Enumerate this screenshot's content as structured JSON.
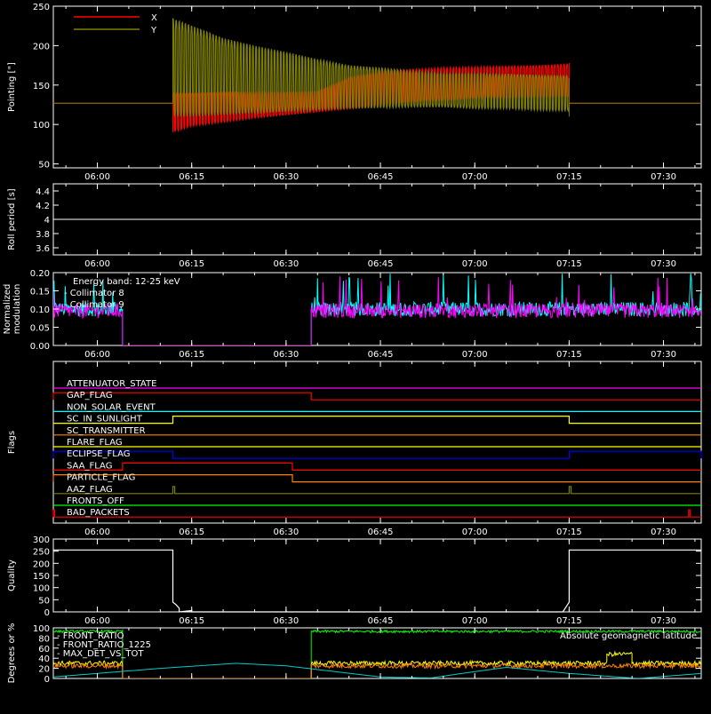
{
  "chart_data": [
    {
      "panel": "pointing",
      "type": "line",
      "ylabel": "Pointing [\"]",
      "ylim": [
        45,
        250
      ],
      "yticks": [
        50,
        100,
        150,
        200,
        250
      ],
      "x_ticklabels": [
        "06:00",
        "06:15",
        "06:30",
        "06:45",
        "07:00",
        "07:15",
        "07:30"
      ],
      "xlim": [
        "05:53",
        "07:36"
      ],
      "legend_position": "top-left",
      "series": [
        {
          "name": "X",
          "color": "#ff0000",
          "baseline": 127,
          "active_range": [
            "06:12",
            "07:15"
          ],
          "envelope_times": [
            "06:12",
            "06:15",
            "06:20",
            "06:25",
            "06:30",
            "06:35",
            "06:40",
            "06:45",
            "06:50",
            "06:55",
            "07:00",
            "07:05",
            "07:10",
            "07:15"
          ],
          "envelope_min": [
            90,
            98,
            103,
            108,
            112,
            116,
            120,
            124,
            128,
            130,
            133,
            133,
            134,
            135
          ],
          "envelope_max": [
            140,
            140,
            141,
            141,
            141,
            142,
            160,
            168,
            170,
            172,
            173,
            174,
            175,
            177
          ]
        },
        {
          "name": "Y",
          "color": "#808000",
          "baseline": 127,
          "active_range": [
            "06:12",
            "07:15"
          ],
          "envelope_times": [
            "06:12",
            "06:15",
            "06:20",
            "06:25",
            "06:30",
            "06:35",
            "06:40",
            "06:45",
            "06:50",
            "06:55",
            "07:00",
            "07:05",
            "07:10",
            "07:15"
          ],
          "envelope_min": [
            110,
            110,
            112,
            114,
            116,
            118,
            120,
            121,
            122,
            122,
            120,
            120,
            118,
            117
          ],
          "envelope_max": [
            235,
            226,
            210,
            200,
            192,
            183,
            175,
            172,
            168,
            165,
            165,
            164,
            163,
            162
          ]
        }
      ]
    },
    {
      "panel": "roll-period",
      "type": "line",
      "ylabel": "Roll period [s]",
      "ylim": [
        3.5,
        4.5
      ],
      "yticks": [
        3.6,
        3.8,
        4.0,
        4.2,
        4.4
      ],
      "x_ticklabels": [
        "06:00",
        "06:15",
        "06:30",
        "06:45",
        "07:00",
        "07:15",
        "07:30"
      ],
      "series": [
        {
          "color": "#ffffff",
          "x": [
            "05:53",
            "07:36"
          ],
          "y": [
            4.0,
            4.0
          ]
        }
      ]
    },
    {
      "panel": "modulation",
      "type": "line",
      "ylabel": [
        "Normalized",
        "modulation"
      ],
      "ylim": [
        0.0,
        0.2
      ],
      "yticks": [
        "0.00",
        "0.05",
        "0.10",
        "0.15",
        "0.20"
      ],
      "x_ticklabels": [
        "06:00",
        "06:15",
        "06:30",
        "06:45",
        "07:00",
        "07:15",
        "07:30"
      ],
      "annotation": "Energy band: 12-25 keV",
      "series": [
        {
          "name": "Collimator 8",
          "color": "#00ffff",
          "level": 0.1,
          "active": [
            [
              "05:53",
              "06:04"
            ],
            [
              "06:34",
              "07:36"
            ]
          ],
          "zero_range": [
            "06:04",
            "06:34"
          ]
        },
        {
          "name": "Collimator 9",
          "color": "#ff00ff",
          "level": 0.095,
          "active": [
            [
              "05:53",
              "06:04"
            ],
            [
              "06:34",
              "07:36"
            ]
          ],
          "zero_range": [
            "06:04",
            "06:34"
          ]
        }
      ]
    },
    {
      "panel": "flags",
      "type": "line",
      "ylabel": "Flags",
      "x_ticklabels": [
        "06:00",
        "06:15",
        "06:30",
        "06:45",
        "07:00",
        "07:15",
        "07:30"
      ],
      "flags": [
        {
          "label": "ATTENUATOR_STATE",
          "color": "#ff00ff",
          "high": []
        },
        {
          "label": "GAP_FLAG",
          "color": "#ff0000",
          "high": [
            [
              "05:53",
              "06:34"
            ]
          ]
        },
        {
          "label": "NON_SOLAR_EVENT",
          "color": "#00ffff",
          "high": []
        },
        {
          "label": "SC_IN_SUNLIGHT",
          "color": "#ffff00",
          "high": [
            [
              "06:12",
              "07:15"
            ]
          ]
        },
        {
          "label": "SC_TRANSMITTER",
          "color": "#ff8000",
          "high": []
        },
        {
          "label": "FLARE_FLAG",
          "color": "#ffff00",
          "high": []
        },
        {
          "label": "ECLIPSE_FLAG",
          "color": "#0000ff",
          "high": [
            [
              "05:53",
              "06:12"
            ],
            [
              "07:15",
              "07:36"
            ]
          ]
        },
        {
          "label": "SAA_FLAG",
          "color": "#ff0000",
          "high": [
            [
              "06:04",
              "06:31"
            ]
          ]
        },
        {
          "label": "PARTICLE_FLAG",
          "color": "#ff8000",
          "high": [
            [
              "05:53",
              "06:31"
            ]
          ]
        },
        {
          "label": "AAZ_FLAG",
          "color": "#808000",
          "high": [
            [
              "06:12",
              "06:12.3"
            ],
            [
              "07:15",
              "07:15.3"
            ]
          ]
        },
        {
          "label": "FRONTS_OFF",
          "color": "#00ff00",
          "high": []
        },
        {
          "label": "BAD_PACKETS",
          "color": "#ff0000",
          "high": [
            [
              "05:53",
              "05:53.2"
            ],
            [
              "07:34",
              "07:34.2"
            ]
          ]
        }
      ]
    },
    {
      "panel": "quality",
      "type": "line",
      "ylabel": "Quality",
      "ylim": [
        0,
        300
      ],
      "yticks": [
        0,
        50,
        100,
        150,
        200,
        250,
        300
      ],
      "x_ticklabels": [
        "06:00",
        "06:15",
        "06:30",
        "06:45",
        "07:00",
        "07:15",
        "07:30"
      ],
      "series": [
        {
          "color": "#ffffff",
          "x": [
            "05:53",
            "06:12",
            "06:12",
            "06:12.5",
            "06:13",
            "06:13",
            "06:15",
            "06:15",
            "07:14",
            "07:15",
            "07:15",
            "07:36"
          ],
          "y": [
            255,
            255,
            40,
            30,
            15,
            0,
            5,
            0,
            0,
            40,
            255,
            255
          ]
        }
      ]
    },
    {
      "panel": "ratios",
      "type": "line",
      "ylabel": "Degrees or %",
      "ylim": [
        0,
        100
      ],
      "yticks": [
        0,
        20,
        40,
        60,
        80,
        100
      ],
      "x_ticklabels": [
        "06:00",
        "06:15",
        "06:30",
        "06:45",
        "07:00",
        "07:15",
        "07:30"
      ],
      "annotation": "Absolute geomagnetic latitude",
      "series": [
        {
          "name": "FRONT_RATIO",
          "color": "#00ff00",
          "segments": [
            {
              "from": "05:53",
              "to": "06:04",
              "level": 93
            },
            {
              "from": "06:04",
              "to": "06:34",
              "level": 0
            },
            {
              "from": "06:34",
              "to": "07:36",
              "level": 93
            }
          ]
        },
        {
          "name": "FRONT_RATIO_1225",
          "color": "#ffff00",
          "segments": [
            {
              "from": "05:53",
              "to": "06:04",
              "level": 30
            },
            {
              "from": "06:04",
              "to": "06:34",
              "level": 0
            },
            {
              "from": "06:34",
              "to": "07:21",
              "level": 30
            },
            {
              "from": "07:21",
              "to": "07:25",
              "level": 48
            },
            {
              "from": "07:25",
              "to": "07:36",
              "level": 30
            }
          ]
        },
        {
          "name": "MAX_DET_VS_TOT",
          "color": "#ff8000",
          "segments": [
            {
              "from": "05:53",
              "to": "06:04",
              "level": 25
            },
            {
              "from": "06:04",
              "to": "06:34",
              "level": 0
            },
            {
              "from": "06:34",
              "to": "07:36",
              "level": 25
            }
          ]
        },
        {
          "name": "",
          "color": "#00cccc",
          "x": [
            "05:53",
            "06:10",
            "06:22",
            "06:30",
            "06:45",
            "06:53",
            "06:58",
            "07:05",
            "07:15",
            "07:26",
            "07:36"
          ],
          "y": [
            3,
            20,
            30,
            25,
            3,
            1,
            10,
            22,
            10,
            0,
            10
          ]
        }
      ]
    }
  ]
}
